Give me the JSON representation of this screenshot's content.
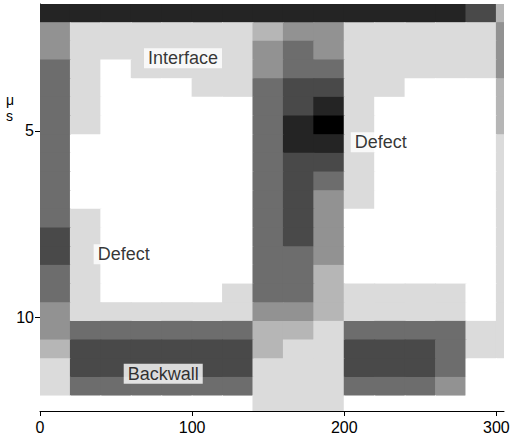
{
  "chart_data": {
    "type": "heatmap",
    "y_label": "μs",
    "xlim": [
      0,
      305
    ],
    "ylim": [
      1.6,
      12.5
    ],
    "xticks": [
      0,
      100,
      200,
      300
    ],
    "yticks": [
      5,
      10
    ],
    "x": [
      10,
      30,
      50,
      70,
      90,
      110,
      130,
      150,
      170,
      190,
      210,
      230,
      250,
      270,
      290,
      310
    ],
    "y": [
      1.85,
      2.35,
      2.85,
      3.35,
      3.85,
      4.35,
      4.85,
      5.35,
      5.85,
      6.35,
      6.85,
      7.35,
      7.85,
      8.35,
      8.85,
      9.35,
      9.85,
      10.35,
      10.85,
      11.35,
      11.85,
      12.35
    ],
    "cells": [
      [
        8,
        8,
        8,
        8,
        8,
        8,
        8,
        8,
        8,
        8,
        8,
        8,
        8,
        8,
        7,
        4
      ],
      [
        5,
        3,
        3,
        3,
        3,
        3,
        3,
        4,
        5,
        5,
        3,
        3,
        3,
        3,
        3,
        5
      ],
      [
        5,
        3,
        3,
        3,
        3,
        3,
        3,
        5,
        6,
        5,
        3,
        3,
        3,
        3,
        3,
        5
      ],
      [
        6,
        3,
        2,
        3,
        3,
        3,
        3,
        5,
        6,
        6,
        3,
        3,
        3,
        3,
        3,
        5
      ],
      [
        6,
        3,
        2,
        2,
        2,
        3,
        3,
        6,
        7,
        7,
        3,
        3,
        2,
        2,
        2,
        4
      ],
      [
        6,
        3,
        2,
        2,
        2,
        2,
        2,
        6,
        7,
        8,
        3,
        2,
        2,
        2,
        2,
        4
      ],
      [
        6,
        3,
        2,
        2,
        2,
        2,
        2,
        6,
        8,
        9,
        3,
        2,
        2,
        2,
        2,
        4
      ],
      [
        6,
        2,
        2,
        2,
        2,
        2,
        2,
        6,
        8,
        8,
        3,
        2,
        2,
        2,
        2,
        3
      ],
      [
        6,
        2,
        2,
        2,
        2,
        2,
        2,
        6,
        7,
        7,
        3,
        2,
        2,
        2,
        2,
        3
      ],
      [
        6,
        2,
        2,
        2,
        2,
        2,
        2,
        6,
        7,
        6,
        3,
        2,
        2,
        2,
        2,
        3
      ],
      [
        6,
        2,
        2,
        2,
        2,
        2,
        2,
        6,
        7,
        5,
        3,
        2,
        2,
        2,
        2,
        3
      ],
      [
        6,
        3,
        2,
        2,
        2,
        2,
        2,
        6,
        7,
        5,
        2,
        2,
        2,
        2,
        2,
        3
      ],
      [
        7,
        3,
        2,
        2,
        2,
        2,
        2,
        6,
        7,
        5,
        2,
        2,
        2,
        2,
        2,
        3
      ],
      [
        7,
        3,
        2,
        2,
        2,
        2,
        2,
        6,
        6,
        5,
        2,
        2,
        2,
        2,
        2,
        3
      ],
      [
        6,
        3,
        2,
        2,
        2,
        2,
        2,
        6,
        6,
        4,
        2,
        2,
        2,
        2,
        2,
        3
      ],
      [
        6,
        3,
        2,
        2,
        2,
        2,
        3,
        6,
        6,
        4,
        3,
        3,
        3,
        3,
        2,
        3
      ],
      [
        5,
        3,
        3,
        3,
        3,
        3,
        3,
        5,
        5,
        4,
        3,
        3,
        3,
        3,
        2,
        3
      ],
      [
        5,
        6,
        6,
        6,
        6,
        6,
        6,
        4,
        4,
        3,
        6,
        6,
        6,
        6,
        3,
        3
      ],
      [
        4,
        7,
        7,
        7,
        7,
        7,
        7,
        4,
        3,
        3,
        7,
        7,
        7,
        6,
        3,
        3
      ],
      [
        3,
        7,
        7,
        7,
        7,
        7,
        7,
        3,
        3,
        3,
        7,
        7,
        7,
        6,
        2,
        2
      ],
      [
        3,
        6,
        6,
        6,
        6,
        6,
        6,
        3,
        3,
        3,
        6,
        6,
        6,
        5,
        2,
        2
      ],
      [
        2,
        2,
        2,
        2,
        2,
        2,
        2,
        3,
        3,
        3,
        2,
        2,
        2,
        2,
        2,
        2
      ]
    ],
    "annotations": [
      {
        "text": "Interface",
        "x": 94,
        "y": 3.05
      },
      {
        "text": "Defect",
        "x": 224,
        "y": 5.3
      },
      {
        "text": "Defect",
        "x": 55,
        "y": 8.3
      },
      {
        "text": "Backwall",
        "x": 81,
        "y": 11.5
      }
    ]
  }
}
